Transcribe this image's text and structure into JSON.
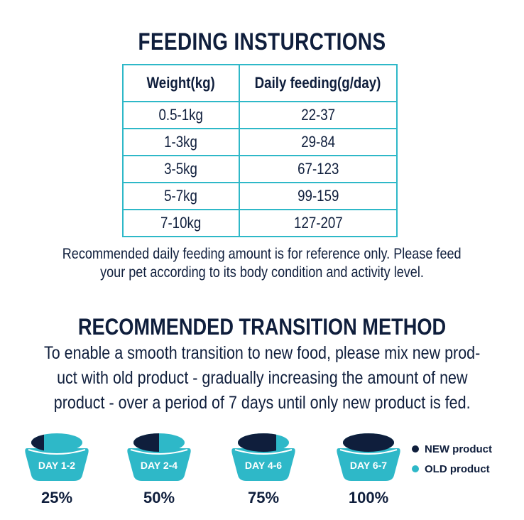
{
  "feeding": {
    "title": "FEEDING INSTURCTIONS",
    "headers": [
      "Weight(kg)",
      "Daily feeding(g/day)"
    ],
    "rows": [
      [
        "0.5-1kg",
        "22-37"
      ],
      [
        "1-3kg",
        "29-84"
      ],
      [
        "3-5kg",
        "67-123"
      ],
      [
        "5-7kg",
        "99-159"
      ],
      [
        "7-10kg",
        "127-207"
      ]
    ],
    "note_line1": "Recommended daily feeding amount is for reference only. Please feed",
    "note_line2": "your pet according to its body condition and activity level."
  },
  "transition": {
    "title": "RECOMMENDED TRANSITION METHOD",
    "line1": "To enable a smooth transition to new food, please mix new prod-",
    "line2": "uct with old product - gradually increasing the amount of new",
    "line3": "product - over a period of 7 days until only new product is fed.",
    "stages": [
      {
        "day": "DAY 1-2",
        "percent": "25%",
        "new_fraction": 0.25
      },
      {
        "day": "DAY 2-4",
        "percent": "50%",
        "new_fraction": 0.5
      },
      {
        "day": "DAY 4-6",
        "percent": "75%",
        "new_fraction": 0.75
      },
      {
        "day": "DAY 6-7",
        "percent": "100%",
        "new_fraction": 1.0
      }
    ],
    "legend": {
      "new_label": "NEW product",
      "old_label": "OLD product"
    }
  },
  "colors": {
    "navy": "#0f1e3c",
    "teal": "#2eb8c8",
    "table_border": "#2eb8c8"
  }
}
